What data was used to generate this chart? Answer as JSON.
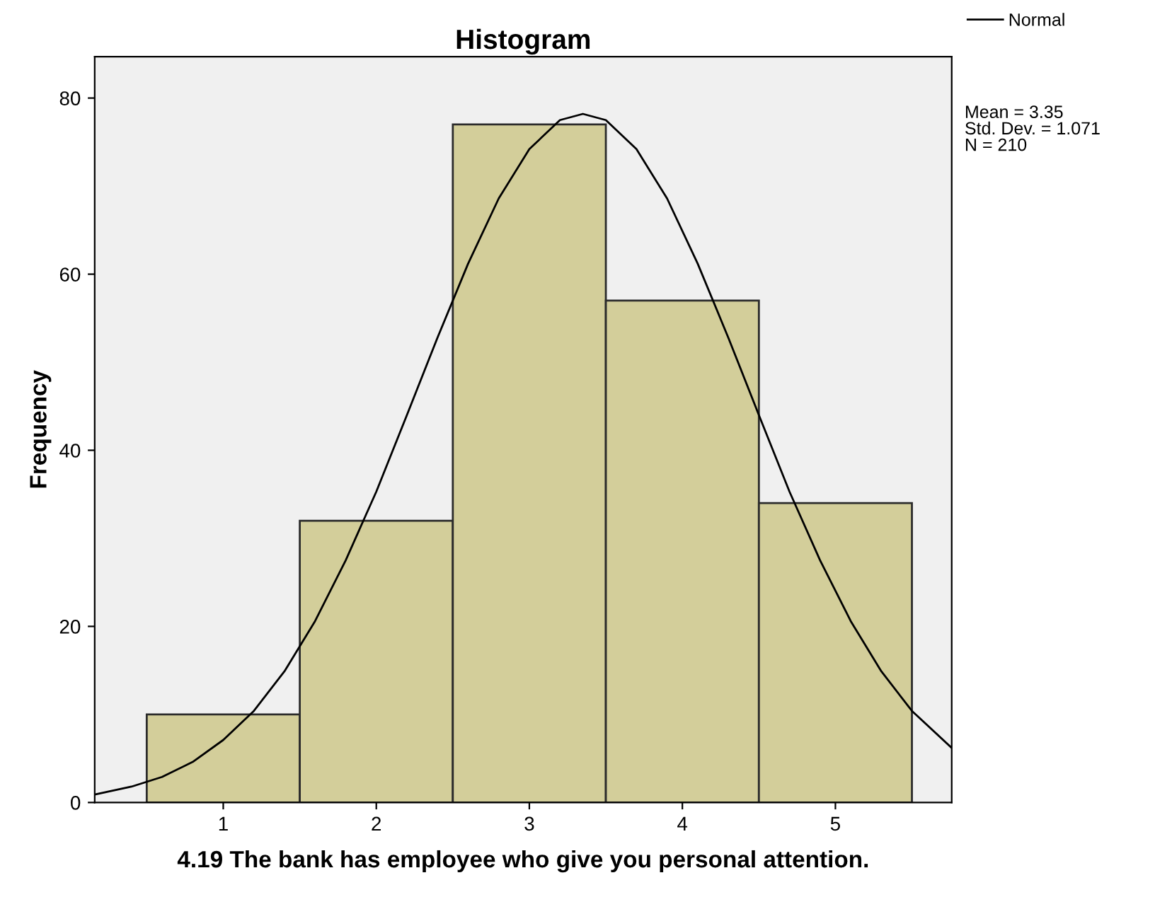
{
  "chart_data": {
    "type": "histogram",
    "title": "Histogram",
    "xlabel": "4.19 The bank has employee who give you personal attention.",
    "ylabel": "Frequency",
    "bins": [
      0.5,
      1.5,
      2.5,
      3.5,
      4.5,
      5.5
    ],
    "values": [
      10,
      32,
      77,
      57,
      34
    ],
    "color": "#d3ce9a",
    "series": [
      {
        "type": "line",
        "name": "Normal",
        "color": "#000000",
        "x": [
          0.16,
          0.4,
          0.6,
          0.8,
          1.0,
          1.2,
          1.4,
          1.6,
          1.8,
          2.0,
          2.2,
          2.4,
          2.6,
          2.8,
          3.0,
          3.2,
          3.35,
          3.5,
          3.7,
          3.9,
          4.1,
          4.3,
          4.5,
          4.7,
          4.9,
          5.1,
          5.3,
          5.5,
          5.76
        ],
        "values": [
          0.9,
          1.8,
          2.9,
          4.6,
          7.1,
          10.4,
          14.9,
          20.6,
          27.5,
          35.3,
          44.0,
          52.8,
          61.2,
          68.6,
          74.2,
          77.5,
          78.2,
          77.5,
          74.2,
          68.6,
          61.2,
          52.8,
          44.0,
          35.3,
          27.5,
          20.6,
          14.9,
          10.4,
          6.2
        ]
      }
    ],
    "annotations": [
      "Mean = 3.35",
      "Std. Dev. = 1.071",
      "N = 210"
    ],
    "xlim": [
      0.16,
      5.76
    ],
    "ylim": [
      0,
      84.7
    ],
    "xticks": [
      1,
      2,
      3,
      4,
      5
    ],
    "yticks": [
      0,
      20,
      40,
      60,
      80
    ],
    "grid": false,
    "legend": "top right"
  }
}
